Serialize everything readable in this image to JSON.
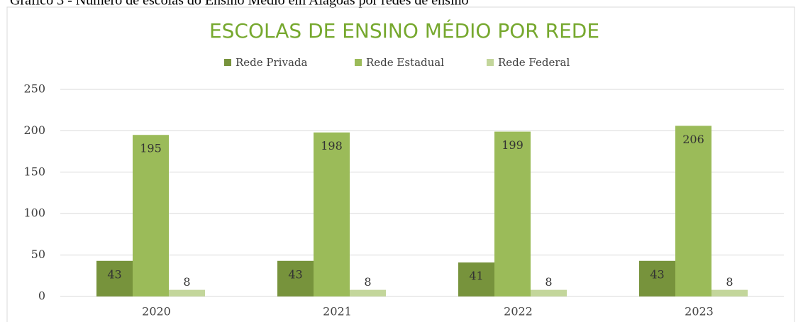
{
  "chart_data": {
    "type": "bar",
    "caption": "Gráfico 3 - Número de escolas do Ensino Médio em Alagoas por redes de ensino",
    "title": "ESCOLAS DE ENSINO MÉDIO POR REDE",
    "categories": [
      "2020",
      "2021",
      "2022",
      "2023"
    ],
    "series": [
      {
        "name": "Rede Privada",
        "color": "#77933c",
        "values": [
          43,
          43,
          41,
          43
        ]
      },
      {
        "name": "Rede Estadual",
        "color": "#9bbb59",
        "values": [
          195,
          198,
          199,
          206
        ]
      },
      {
        "name": "Rede Federal",
        "color": "#c3d69b",
        "values": [
          8,
          8,
          8,
          8
        ]
      }
    ],
    "ylim": [
      0,
      250
    ],
    "yticks": [
      0,
      50,
      100,
      150,
      200,
      250
    ],
    "grid": true,
    "legend": "top"
  }
}
